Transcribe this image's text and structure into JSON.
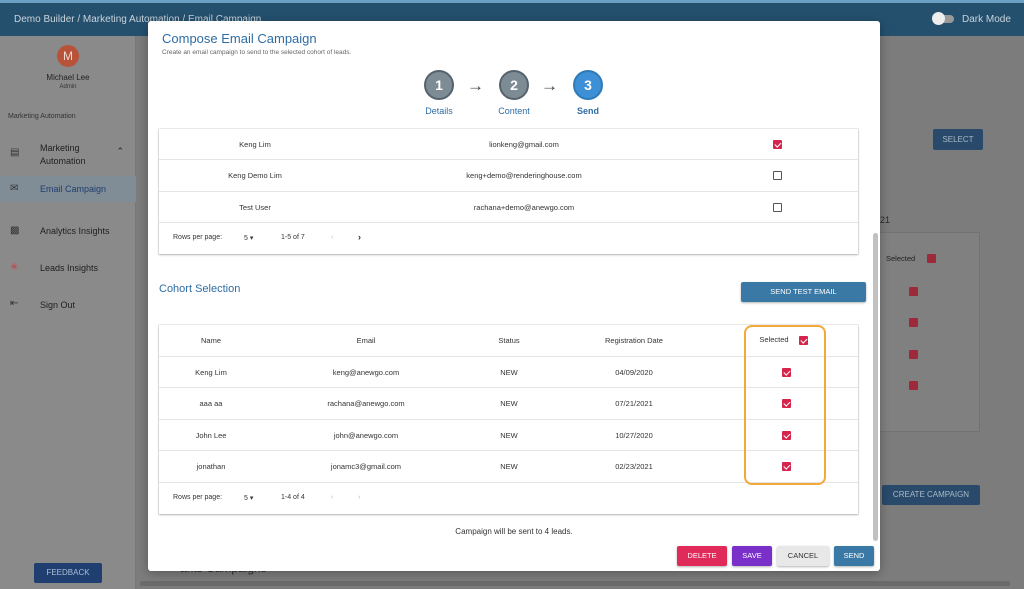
{
  "topbar": {
    "breadcrumb": "Demo Builder  /  Marketing Automation / Email Campaign",
    "dark_mode_label": "Dark Mode"
  },
  "sidebar": {
    "avatar_initial": "M",
    "user_name": "Michael Lee",
    "user_role": "Admin",
    "section_label": "Marketing Automation",
    "items": [
      {
        "label": "Marketing Automation",
        "icon": "clipboard-icon"
      },
      {
        "label": "Email Campaign",
        "icon": "mail-icon"
      },
      {
        "label": "Analytics Insights",
        "icon": "chart-icon"
      },
      {
        "label": "Leads Insights",
        "icon": "pin-icon"
      },
      {
        "label": "Sign Out",
        "icon": "exit-icon"
      }
    ],
    "feedback_label": "FEEDBACK"
  },
  "background": {
    "select_label": "SELECT",
    "number_fragment": "21",
    "selected_label": "Selected",
    "create_campaign_label": "CREATE CAMPAIGN",
    "campaigns_fragment": "ants Campaigns"
  },
  "modal": {
    "title": "Compose Email Campaign",
    "subtitle": "Create an email campaign to send to the selected cohort of leads.",
    "steps": [
      {
        "number": "1",
        "label": "Details"
      },
      {
        "number": "2",
        "label": "Content"
      },
      {
        "number": "3",
        "label": "Send"
      }
    ],
    "current_step": 3,
    "test_recipients": {
      "rows": [
        {
          "name": "Keng Lim",
          "email": "lionkeng@gmail.com",
          "selected": true
        },
        {
          "name": "Keng Demo Lim",
          "email": "keng+demo@renderinghouse.com",
          "selected": false
        },
        {
          "name": "Test User",
          "email": "rachana+demo@anewgo.com",
          "selected": false
        }
      ],
      "rows_per_page_label": "Rows per page:",
      "rows_per_page_value": "5",
      "range": "1-5 of 7"
    },
    "cohort": {
      "title": "Cohort Selection",
      "send_test_label": "SEND TEST EMAIL",
      "headers": {
        "name": "Name",
        "email": "Email",
        "status": "Status",
        "registration_date": "Registration Date",
        "selected": "Selected"
      },
      "rows": [
        {
          "name": "Keng Lim",
          "email": "keng@anewgo.com",
          "status": "NEW",
          "date": "04/09/2020",
          "selected": true
        },
        {
          "name": "aaa aa",
          "email": "rachana@anewgo.com",
          "status": "NEW",
          "date": "07/21/2021",
          "selected": true
        },
        {
          "name": "John Lee",
          "email": "john@anewgo.com",
          "status": "NEW",
          "date": "10/27/2020",
          "selected": true
        },
        {
          "name": "jonathan",
          "email": "jonamc3@gmail.com",
          "status": "NEW",
          "date": "02/23/2021",
          "selected": true
        }
      ],
      "rows_per_page_label": "Rows per page:",
      "rows_per_page_value": "5",
      "range": "1-4 of 4"
    },
    "footer_message": "Campaign will be sent to 4 leads.",
    "buttons": {
      "delete": "DELETE",
      "save": "SAVE",
      "cancel": "CANCEL",
      "send": "SEND"
    }
  },
  "colors": {
    "accent": "#2e6da4",
    "checkbox": "#d6254d",
    "delete": "#e02a5a",
    "save": "#7b2fc9",
    "send": "#3a78a6",
    "highlight": "#f3a83a"
  }
}
